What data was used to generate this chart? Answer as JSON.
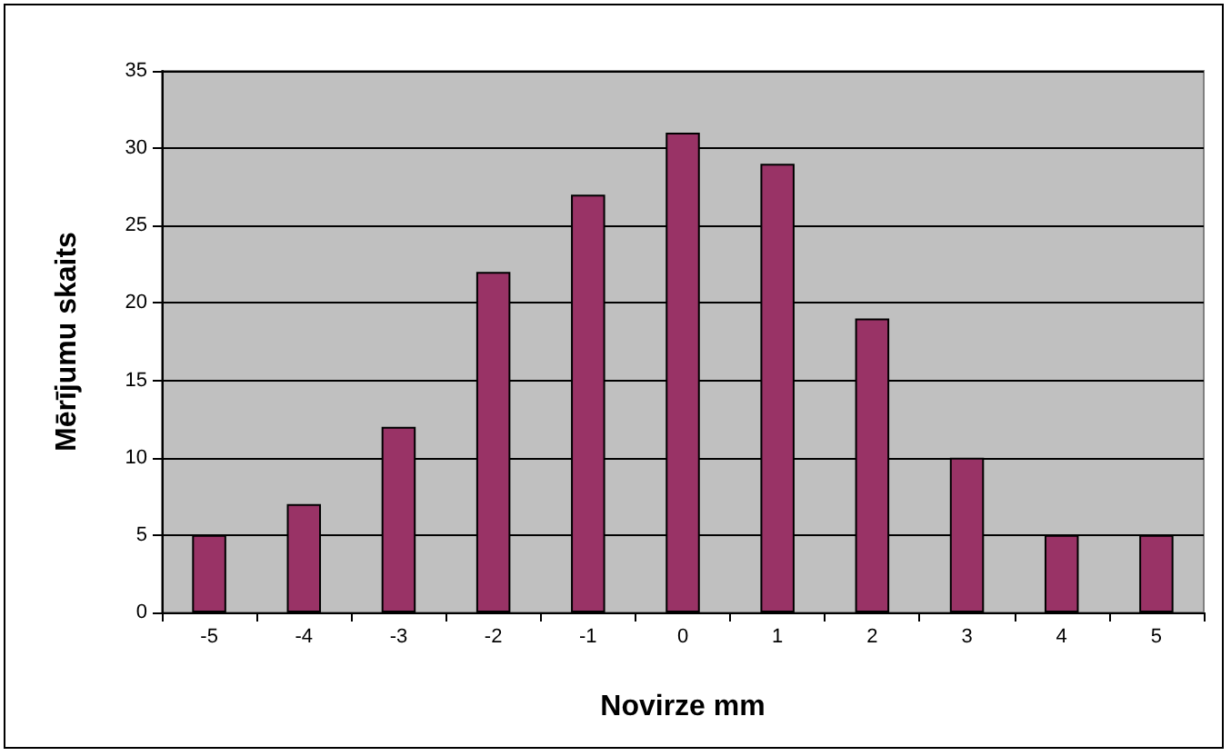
{
  "chart_data": {
    "type": "bar",
    "xlabel": "Novirze mm",
    "ylabel": "Mērījumu skaits",
    "categories": [
      "-5",
      "-4",
      "-3",
      "-2",
      "-1",
      "0",
      "1",
      "2",
      "3",
      "4",
      "5"
    ],
    "values": [
      5,
      7,
      12,
      22,
      27,
      31,
      29,
      19,
      10,
      5,
      5
    ],
    "color": "#993366",
    "ylim": [
      0,
      35
    ],
    "yticks": [
      0,
      5,
      10,
      15,
      20,
      25,
      30,
      35
    ],
    "grid": "y"
  }
}
